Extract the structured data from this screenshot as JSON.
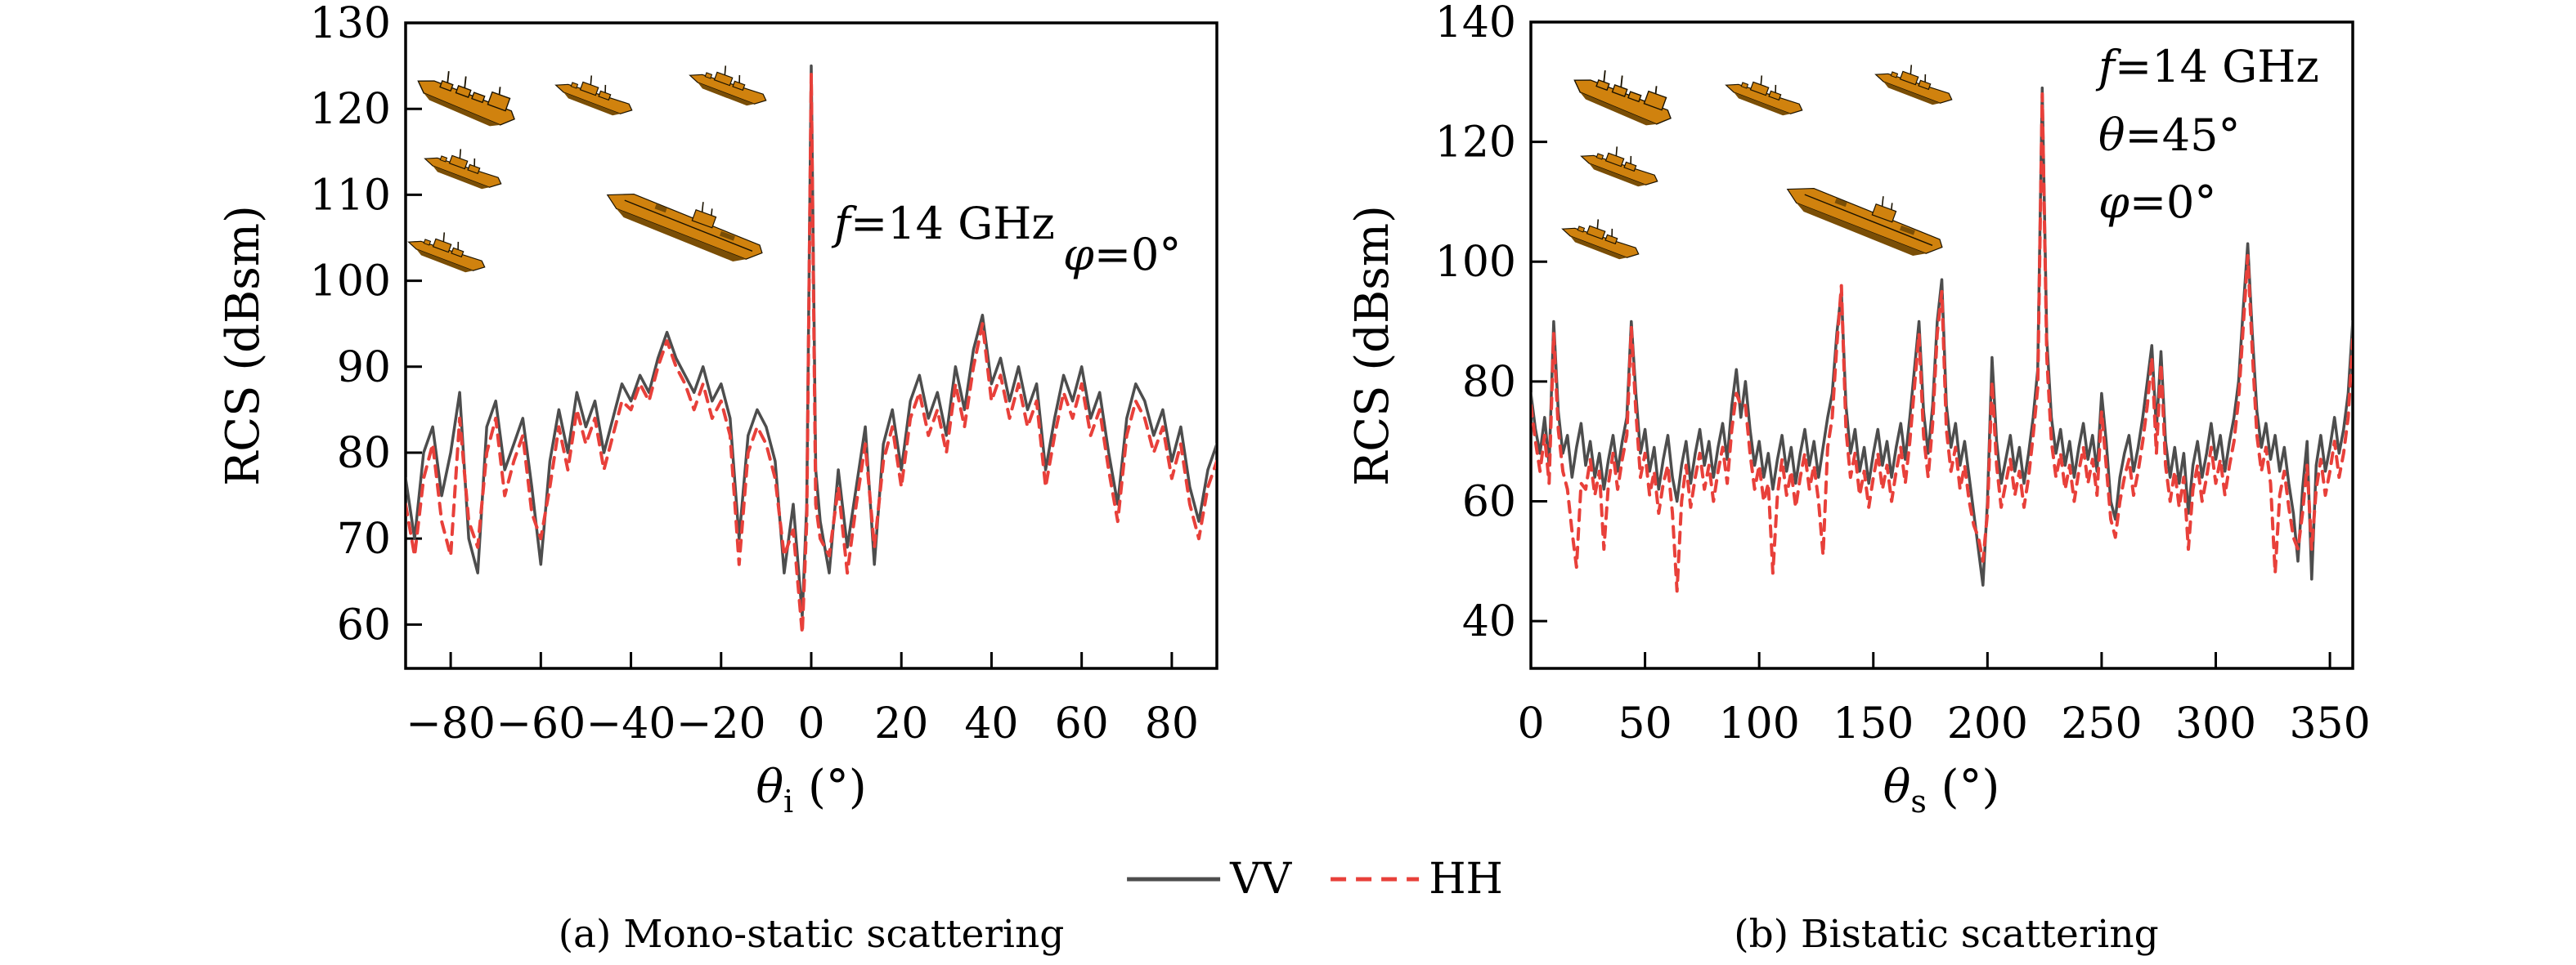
{
  "figure": {
    "description": "RCS scattering results, VV and HH polarization"
  },
  "colors": {
    "vv": "#4d4d4d",
    "hh": "#e8403a",
    "frame": "#000000",
    "ship_fill": "#D0820E",
    "ship_dark": "#7A4E06",
    "ship_outline": "#1a1200"
  },
  "legend": {
    "items": [
      {
        "label": "VV",
        "style": "solid",
        "color": "#4d4d4d"
      },
      {
        "label": "HH",
        "style": "dashed",
        "color": "#e8403a"
      }
    ]
  },
  "captions": {
    "a": "(a) Mono-static scattering",
    "b": "(b) Bistatic scattering"
  },
  "chart_data": [
    {
      "type": "line",
      "id": "mono-static",
      "caption": "(a) Mono-static scattering",
      "xlabel": {
        "lead": "θ",
        "sub": "i",
        "rest": " (°)"
      },
      "ylabel": "RCS (dBsm)",
      "xlim": [
        -90,
        90
      ],
      "ylim": [
        54.9,
        130
      ],
      "grid": false,
      "legend_position": "below-figure",
      "xticks": {
        "values": [
          -80,
          -60,
          -40,
          -20,
          0,
          20,
          40,
          60,
          80
        ],
        "labels": [
          "−80",
          "−60",
          "−40",
          "−20",
          "0",
          "20",
          "40",
          "60",
          "80"
        ]
      },
      "yticks": {
        "values": [
          60,
          70,
          80,
          90,
          100,
          110,
          120,
          130
        ],
        "labels": [
          "60",
          "70",
          "80",
          "90",
          "100",
          "110",
          "120",
          "130"
        ]
      },
      "annotations": [
        {
          "lead": "f",
          "rest": "=14 GHz"
        },
        {
          "lead": "φ",
          "rest": "=0°"
        }
      ],
      "inset_models": [
        "cargo-ship-model",
        "destroyer-model",
        "destroyer-model",
        "destroyer-model",
        "aircraft-carrier-model",
        "destroyer-model"
      ],
      "x": [
        -90,
        -88,
        -86,
        -84,
        -82,
        -80,
        -78,
        -76,
        -74,
        -72,
        -70,
        -68,
        -66,
        -64,
        -62,
        -60,
        -58,
        -56,
        -54,
        -52,
        -50,
        -48,
        -46,
        -44,
        -42,
        -40,
        -38,
        -36,
        -34,
        -32,
        -30,
        -28,
        -26,
        -24,
        -22,
        -20,
        -18,
        -16,
        -14,
        -12,
        -10,
        -8,
        -6,
        -4,
        -2,
        -1,
        0,
        1,
        2,
        4,
        6,
        8,
        10,
        12,
        14,
        16,
        18,
        20,
        22,
        24,
        26,
        28,
        30,
        32,
        34,
        36,
        38,
        40,
        42,
        44,
        46,
        48,
        50,
        52,
        54,
        56,
        58,
        60,
        62,
        64,
        66,
        68,
        70,
        72,
        74,
        76,
        78,
        80,
        82,
        84,
        86,
        88,
        90
      ],
      "series": [
        {
          "name": "VV",
          "style": "solid",
          "color": "#4d4d4d",
          "values": [
            77,
            70,
            80,
            83,
            75,
            80,
            87,
            70,
            66,
            83,
            86,
            78,
            81,
            84,
            76,
            67,
            79,
            85,
            80,
            87,
            83,
            86,
            80,
            84,
            88,
            86,
            89,
            87,
            91,
            94,
            91,
            89,
            87,
            90,
            86,
            88,
            84,
            70,
            82,
            85,
            83,
            79,
            66,
            74,
            61,
            74,
            125,
            78,
            72,
            66,
            78,
            69,
            76,
            83,
            67,
            81,
            85,
            78,
            86,
            89,
            84,
            87,
            82,
            90,
            85,
            92,
            96,
            88,
            91,
            86,
            90,
            85,
            88,
            78,
            84,
            89,
            86,
            90,
            84,
            87,
            80,
            74,
            84,
            88,
            86,
            82,
            85,
            79,
            83,
            76,
            72,
            78,
            81
          ]
        },
        {
          "name": "HH",
          "style": "dashed",
          "color": "#e8403a",
          "values": [
            74,
            68,
            77,
            81,
            72,
            68,
            84,
            72,
            69,
            80,
            84,
            75,
            79,
            82,
            73,
            70,
            76,
            83,
            78,
            85,
            81,
            84,
            78,
            82,
            86,
            85,
            88,
            86,
            90,
            93,
            90,
            88,
            85,
            88,
            84,
            86,
            82,
            67,
            80,
            83,
            81,
            77,
            68,
            71,
            59,
            72,
            124,
            74,
            70,
            68,
            76,
            66,
            74,
            81,
            69,
            79,
            83,
            76,
            84,
            87,
            82,
            85,
            80,
            88,
            83,
            90,
            95,
            86,
            89,
            84,
            88,
            83,
            86,
            76,
            82,
            87,
            84,
            88,
            82,
            85,
            78,
            72,
            82,
            86,
            84,
            80,
            83,
            77,
            81,
            74,
            70,
            76,
            79
          ]
        }
      ]
    },
    {
      "type": "line",
      "id": "bistatic",
      "caption": "(b) Bistatic scattering",
      "xlabel": {
        "lead": "θ",
        "sub": "s",
        "rest": " (°)"
      },
      "ylabel": "RCS (dBsm)",
      "xlim": [
        0,
        360
      ],
      "ylim": [
        32.1,
        140
      ],
      "grid": false,
      "legend_position": "below-figure",
      "xticks": {
        "values": [
          0,
          50,
          100,
          150,
          200,
          250,
          300,
          350
        ],
        "labels": [
          "0",
          "50",
          "100",
          "150",
          "200",
          "250",
          "300",
          "350"
        ]
      },
      "yticks": {
        "values": [
          40,
          60,
          80,
          100,
          120,
          140
        ],
        "labels": [
          "40",
          "60",
          "80",
          "100",
          "120",
          "140"
        ]
      },
      "annotations": [
        {
          "lead": "f",
          "rest": "=14 GHz"
        },
        {
          "lead": "θ",
          "rest": "=45°"
        },
        {
          "lead": "φ",
          "rest": "=0°"
        }
      ],
      "inset_models": [
        "cargo-ship-model",
        "destroyer-model",
        "destroyer-model",
        "destroyer-model",
        "aircraft-carrier-model",
        "destroyer-model"
      ],
      "x": [
        0,
        2,
        4,
        6,
        8,
        10,
        12,
        14,
        16,
        18,
        20,
        22,
        24,
        26,
        28,
        30,
        32,
        34,
        36,
        38,
        40,
        42,
        44,
        46,
        48,
        50,
        52,
        54,
        56,
        58,
        60,
        62,
        64,
        66,
        68,
        70,
        72,
        74,
        76,
        78,
        80,
        82,
        84,
        86,
        88,
        90,
        92,
        94,
        96,
        98,
        100,
        102,
        104,
        106,
        108,
        110,
        112,
        114,
        116,
        118,
        120,
        122,
        124,
        126,
        128,
        130,
        132,
        134,
        136,
        138,
        140,
        142,
        144,
        146,
        148,
        150,
        152,
        154,
        156,
        158,
        160,
        162,
        164,
        166,
        168,
        170,
        172,
        174,
        176,
        178,
        180,
        182,
        184,
        186,
        188,
        190,
        192,
        194,
        196,
        198,
        200,
        202,
        204,
        206,
        208,
        210,
        212,
        214,
        216,
        218,
        220,
        222,
        224,
        226,
        228,
        230,
        232,
        234,
        236,
        238,
        240,
        242,
        244,
        246,
        248,
        250,
        252,
        254,
        256,
        258,
        260,
        262,
        264,
        266,
        268,
        270,
        272,
        274,
        276,
        278,
        280,
        282,
        284,
        286,
        288,
        290,
        292,
        294,
        296,
        298,
        300,
        302,
        304,
        306,
        308,
        310,
        312,
        314,
        316,
        318,
        320,
        322,
        324,
        326,
        328,
        330,
        332,
        334,
        336,
        338,
        340,
        342,
        344,
        346,
        348,
        350,
        352,
        354,
        356,
        358,
        360
      ],
      "series": [
        {
          "name": "VV",
          "style": "solid",
          "color": "#4d4d4d",
          "values": [
            78,
            72,
            68,
            74,
            66,
            90,
            75,
            68,
            71,
            64,
            69,
            73,
            66,
            70,
            64,
            68,
            62,
            67,
            71,
            65,
            70,
            74,
            90,
            78,
            68,
            72,
            65,
            69,
            62,
            67,
            71,
            64,
            60,
            66,
            70,
            63,
            68,
            72,
            66,
            70,
            64,
            69,
            73,
            67,
            76,
            82,
            74,
            80,
            72,
            66,
            70,
            64,
            68,
            62,
            67,
            71,
            65,
            69,
            63,
            68,
            72,
            66,
            70,
            64,
            69,
            74,
            78,
            88,
            95,
            76,
            68,
            72,
            65,
            69,
            63,
            68,
            72,
            66,
            70,
            64,
            69,
            73,
            67,
            74,
            82,
            90,
            75,
            68,
            76,
            90,
            97,
            76,
            69,
            73,
            66,
            70,
            64,
            58,
            52,
            46,
            60,
            84,
            70,
            63,
            67,
            71,
            65,
            69,
            63,
            68,
            74,
            82,
            129,
            87,
            74,
            68,
            72,
            66,
            70,
            64,
            69,
            73,
            67,
            71,
            65,
            78,
            70,
            60,
            57,
            64,
            68,
            71,
            65,
            69,
            74,
            80,
            86,
            72,
            85,
            70,
            64,
            69,
            63,
            68,
            58,
            66,
            70,
            64,
            68,
            73,
            67,
            71,
            65,
            70,
            74,
            80,
            92,
            103,
            88,
            75,
            69,
            73,
            67,
            71,
            65,
            69,
            63,
            58,
            50,
            62,
            70,
            47,
            66,
            71,
            65,
            69,
            74,
            68,
            72,
            78,
            90
          ]
        },
        {
          "name": "HH",
          "style": "dashed",
          "color": "#e8403a",
          "values": [
            76,
            70,
            65,
            71,
            63,
            88,
            72,
            65,
            62,
            55,
            49,
            63,
            62,
            67,
            61,
            65,
            52,
            63,
            68,
            62,
            67,
            71,
            89,
            75,
            64,
            68,
            61,
            65,
            58,
            63,
            66,
            58,
            45,
            60,
            66,
            59,
            64,
            68,
            62,
            66,
            60,
            65,
            69,
            63,
            72,
            78,
            76,
            76,
            68,
            62,
            66,
            60,
            63,
            48,
            61,
            67,
            61,
            65,
            59,
            64,
            68,
            62,
            66,
            60,
            51,
            69,
            74,
            86,
            96,
            72,
            64,
            68,
            61,
            65,
            59,
            64,
            68,
            62,
            66,
            60,
            65,
            69,
            63,
            70,
            79,
            88,
            71,
            64,
            73,
            88,
            95,
            72,
            65,
            69,
            62,
            66,
            60,
            56,
            54,
            50,
            58,
            80,
            66,
            59,
            63,
            67,
            61,
            65,
            59,
            64,
            71,
            79,
            128,
            84,
            70,
            64,
            68,
            62,
            66,
            60,
            65,
            69,
            63,
            67,
            61,
            75,
            66,
            57,
            54,
            60,
            64,
            67,
            61,
            65,
            70,
            76,
            84,
            68,
            83,
            66,
            60,
            65,
            59,
            64,
            52,
            62,
            66,
            60,
            64,
            69,
            63,
            67,
            61,
            66,
            70,
            77,
            89,
            101,
            85,
            71,
            65,
            69,
            63,
            48,
            61,
            65,
            59,
            54,
            52,
            58,
            66,
            52,
            62,
            67,
            61,
            65,
            70,
            64,
            68,
            74,
            87
          ]
        }
      ]
    }
  ]
}
